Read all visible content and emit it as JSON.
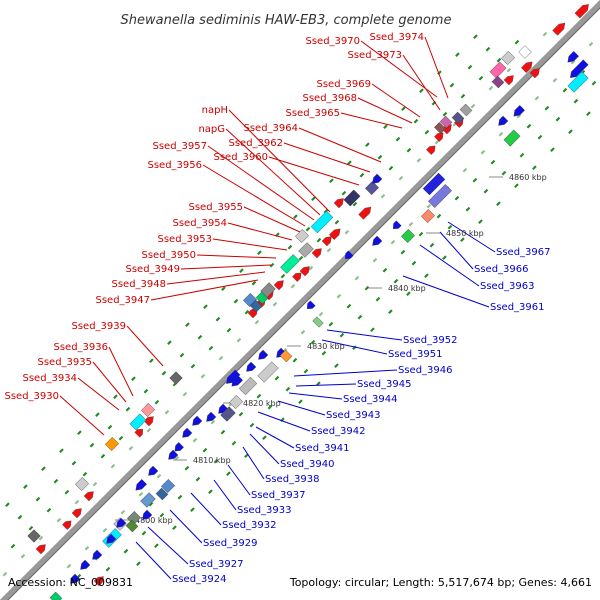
{
  "title": "Shewanella sediminis HAW-EB3, complete genome",
  "accession": "Accession: NC_009831",
  "topology": "Topology: circular; Length: 5,517,674 bp; Genes: 4,661",
  "colors": {
    "forward_label": "#cc0000",
    "reverse_label": "#0000cc",
    "backbone": "#999999",
    "tick": "#228b22"
  },
  "scale_ticks": [
    "4800 kbp",
    "4810 kbp",
    "4820 kbp",
    "4830 kbp",
    "4840 kbp",
    "4850 kbp",
    "4860 kbp"
  ],
  "forward_labels": [
    "Ssed_3970",
    "Ssed_3974",
    "Ssed_3973",
    "Ssed_3969",
    "Ssed_3968",
    "Ssed_3965",
    "napH",
    "Ssed_3964",
    "napG",
    "Ssed_3962",
    "Ssed_3957",
    "Ssed_3960",
    "Ssed_3956",
    "Ssed_3955",
    "Ssed_3954",
    "Ssed_3953",
    "Ssed_3950",
    "Ssed_3949",
    "Ssed_3948",
    "Ssed_3947",
    "Ssed_3939",
    "Ssed_3936",
    "Ssed_3935",
    "Ssed_3934",
    "Ssed_3930"
  ],
  "reverse_labels": [
    "Ssed_3967",
    "Ssed_3966",
    "Ssed_3963",
    "Ssed_3961",
    "Ssed_3952",
    "Ssed_3951",
    "Ssed_3946",
    "Ssed_3945",
    "Ssed_3944",
    "Ssed_3943",
    "Ssed_3942",
    "Ssed_3941",
    "Ssed_3940",
    "Ssed_3938",
    "Ssed_3937",
    "Ssed_3933",
    "Ssed_3932",
    "Ssed_3929",
    "Ssed_3927",
    "Ssed_3924"
  ]
}
